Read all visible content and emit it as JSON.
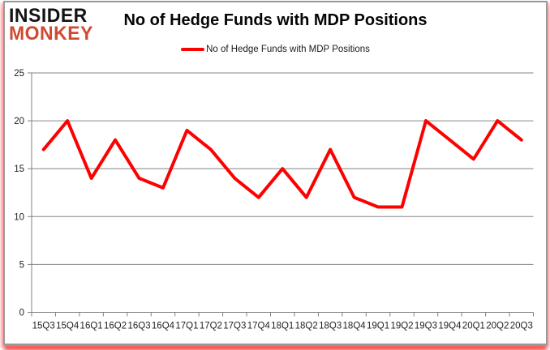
{
  "logo": {
    "line1": "INSIDER",
    "line2": "MONKEY",
    "color_primary": "#141414",
    "color_accent": "#d04a30"
  },
  "header": {
    "title": "No of Hedge Funds with MDP Positions"
  },
  "legend": {
    "label": "No of Hedge Funds with MDP Positions",
    "swatch_color": "#fe0000"
  },
  "chart_data": {
    "type": "line",
    "title": "No of Hedge Funds with MDP Positions",
    "categories": [
      "15Q3",
      "15Q4",
      "16Q1",
      "16Q2",
      "16Q3",
      "16Q4",
      "17Q1",
      "17Q2",
      "17Q3",
      "17Q4",
      "18Q1",
      "18Q2",
      "18Q3",
      "18Q4",
      "19Q1",
      "19Q2",
      "19Q3",
      "19Q4",
      "20Q1",
      "20Q2",
      "20Q3"
    ],
    "series": [
      {
        "name": "No of Hedge Funds with MDP Positions",
        "color": "#fe0000",
        "values": [
          17,
          20,
          14,
          18,
          14,
          13,
          19,
          17,
          14,
          12,
          15,
          12,
          17,
          12,
          11,
          11,
          20,
          18,
          16,
          20,
          18
        ]
      }
    ],
    "ylim": [
      0,
      25
    ],
    "yticks": [
      0,
      5,
      10,
      15,
      20,
      25
    ],
    "ytick_interval": 5,
    "grid": "horizontal",
    "legend_position": "top-center",
    "gridline_color": "#868686",
    "axis_color": "#808080",
    "label_color": "#1f1f1f",
    "xlabel": "",
    "ylabel": ""
  }
}
